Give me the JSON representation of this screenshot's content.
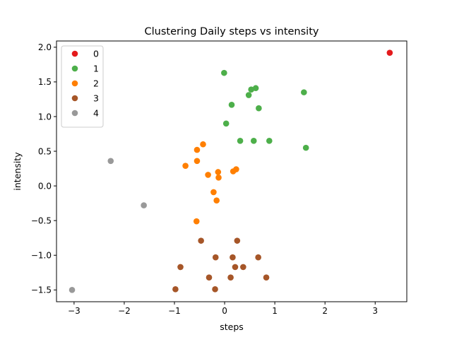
{
  "chart_data": {
    "type": "scatter",
    "title": "Clustering Daily steps vs intensity",
    "xlabel": "steps",
    "ylabel": "intensity",
    "xlim": [
      -3.35,
      3.63
    ],
    "ylim": [
      -1.67,
      2.09
    ],
    "xticks": [
      -3,
      -2,
      -1,
      0,
      1,
      2,
      3
    ],
    "yticks": [
      -1.5,
      -1.0,
      -0.5,
      0.0,
      0.5,
      1.0,
      1.5,
      2.0
    ],
    "xtick_labels": [
      "−3",
      "−2",
      "−1",
      "0",
      "1",
      "2",
      "3"
    ],
    "ytick_labels": [
      "−1.5",
      "−1.0",
      "−0.5",
      "0.0",
      "0.5",
      "1.0",
      "1.5",
      "2.0"
    ],
    "grid": false,
    "legend_position": "top-left",
    "series": [
      {
        "name": "0",
        "color": "#e41a1c",
        "points": [
          [
            3.29,
            1.92
          ]
        ]
      },
      {
        "name": "1",
        "color": "#4daf4a",
        "points": [
          [
            -0.01,
            1.63
          ],
          [
            0.53,
            1.39
          ],
          [
            0.62,
            1.41
          ],
          [
            0.48,
            1.31
          ],
          [
            0.14,
            1.17
          ],
          [
            0.68,
            1.12
          ],
          [
            0.03,
            0.9
          ],
          [
            0.31,
            0.65
          ],
          [
            0.58,
            0.65
          ],
          [
            0.89,
            0.65
          ],
          [
            1.58,
            1.35
          ],
          [
            1.62,
            0.55
          ]
        ]
      },
      {
        "name": "2",
        "color": "#ff7f00",
        "points": [
          [
            -0.43,
            0.6
          ],
          [
            -0.55,
            0.52
          ],
          [
            -0.55,
            0.36
          ],
          [
            -0.78,
            0.29
          ],
          [
            -0.33,
            0.16
          ],
          [
            -0.13,
            0.2
          ],
          [
            -0.12,
            0.12
          ],
          [
            0.23,
            0.24
          ],
          [
            0.17,
            0.21
          ],
          [
            -0.22,
            -0.09
          ],
          [
            -0.16,
            -0.21
          ],
          [
            -0.56,
            -0.51
          ]
        ]
      },
      {
        "name": "3",
        "color": "#a65628",
        "points": [
          [
            -0.47,
            -0.79
          ],
          [
            0.25,
            -0.79
          ],
          [
            -0.18,
            -1.03
          ],
          [
            0.16,
            -1.03
          ],
          [
            0.67,
            -1.03
          ],
          [
            -0.88,
            -1.17
          ],
          [
            0.21,
            -1.17
          ],
          [
            0.37,
            -1.17
          ],
          [
            -0.31,
            -1.32
          ],
          [
            0.12,
            -1.32
          ],
          [
            0.83,
            -1.32
          ],
          [
            -0.98,
            -1.49
          ],
          [
            -0.19,
            -1.49
          ]
        ]
      },
      {
        "name": "4",
        "color": "#999999",
        "points": [
          [
            -2.27,
            0.36
          ],
          [
            -1.61,
            -0.28
          ],
          [
            -3.04,
            -1.5
          ]
        ]
      }
    ]
  }
}
